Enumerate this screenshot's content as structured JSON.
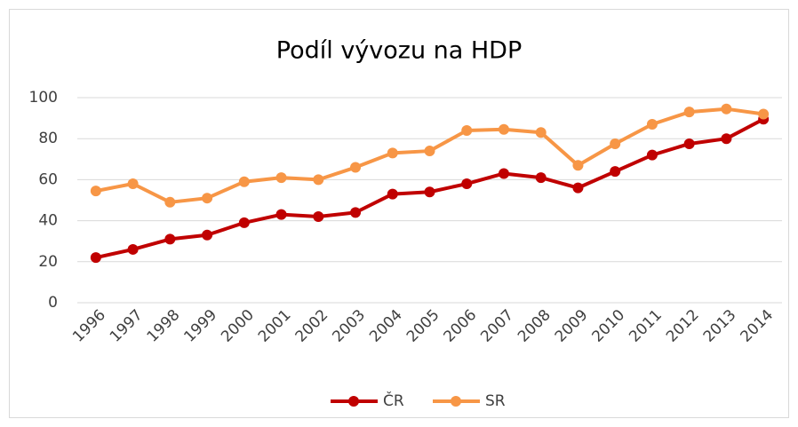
{
  "chart_data": {
    "type": "line",
    "title": "Podíl vývozu na HDP",
    "categories": [
      "1996",
      "1997",
      "1998",
      "1999",
      "2000",
      "2001",
      "2002",
      "2003",
      "2004",
      "2005",
      "2006",
      "2007",
      "2008",
      "2009",
      "2010",
      "2011",
      "2012",
      "2013",
      "2014"
    ],
    "series": [
      {
        "name": "ČR",
        "color": "#c00000",
        "values": [
          22,
          26,
          31,
          33,
          39,
          43,
          42,
          44,
          53,
          54,
          58,
          63,
          61,
          56,
          64,
          72,
          77.5,
          80,
          89.5
        ]
      },
      {
        "name": "SR",
        "color": "#f79646",
        "values": [
          54.5,
          58,
          49,
          51,
          59,
          61,
          60,
          66,
          73,
          74,
          84,
          84.5,
          83,
          67,
          77.5,
          87,
          93,
          94.5,
          92
        ]
      }
    ],
    "ylim": [
      0,
      100
    ],
    "yticks": [
      0,
      20,
      40,
      60,
      80,
      100
    ],
    "grid": true,
    "legend": "bottom"
  }
}
